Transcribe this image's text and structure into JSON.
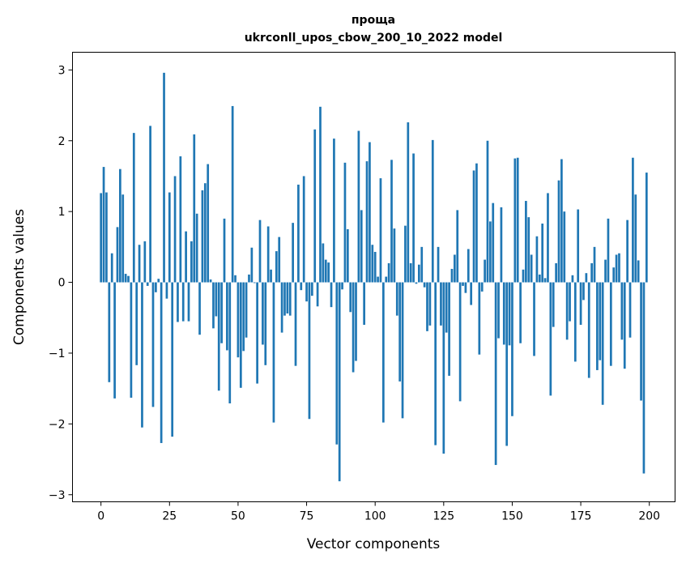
{
  "chart_data": {
    "type": "bar",
    "title": [
      "проща",
      "ukrconll_upos_cbow_200_10_2022 model"
    ],
    "xlabel": "Vector components",
    "ylabel": "Components values",
    "xlim": [
      -10.39,
      209.39
    ],
    "ylim": [
      -3.1,
      3.25
    ],
    "xticks": [
      0,
      25,
      50,
      75,
      100,
      125,
      150,
      175,
      200
    ],
    "yticks": [
      -3,
      -2,
      -1,
      0,
      1,
      2,
      3
    ],
    "ytick_labels": [
      "−3",
      "−2",
      "−1",
      "0",
      "1",
      "2",
      "3"
    ],
    "grid": false,
    "bar_color": "#1f77b4",
    "values": [
      1.26,
      1.63,
      1.27,
      -1.41,
      0.41,
      -1.64,
      0.78,
      1.6,
      1.24,
      0.12,
      0.09,
      -1.63,
      2.11,
      -1.17,
      0.53,
      -2.05,
      0.58,
      -0.05,
      2.21,
      -1.76,
      -0.14,
      0.05,
      -2.27,
      2.96,
      -0.23,
      1.27,
      -2.18,
      1.5,
      -0.56,
      1.78,
      -0.55,
      0.72,
      -0.55,
      0.58,
      2.09,
      0.97,
      -0.74,
      1.3,
      1.4,
      1.67,
      0.04,
      -0.65,
      -0.48,
      -1.53,
      -0.86,
      0.9,
      -0.96,
      -1.71,
      2.49,
      0.1,
      -1.06,
      -1.49,
      -0.97,
      -0.78,
      0.11,
      0.49,
      -0.01,
      -1.43,
      0.88,
      -0.88,
      -1.17,
      0.79,
      0.18,
      -1.98,
      0.44,
      0.64,
      -0.71,
      -0.47,
      -0.44,
      -0.47,
      0.84,
      -1.18,
      1.38,
      -0.11,
      1.5,
      -0.27,
      -1.93,
      -0.19,
      2.16,
      -0.34,
      2.48,
      0.55,
      0.32,
      0.28,
      -0.35,
      2.03,
      -2.29,
      -2.81,
      -0.1,
      1.69,
      0.75,
      -0.42,
      -1.27,
      -1.11,
      2.14,
      1.02,
      -0.6,
      1.71,
      1.98,
      0.53,
      0.43,
      0.08,
      1.47,
      -1.98,
      0.08,
      0.27,
      1.73,
      0.76,
      -0.47,
      -1.4,
      -1.92,
      0.8,
      2.26,
      0.27,
      1.82,
      -0.02,
      0.25,
      0.5,
      -0.07,
      -0.69,
      -0.61,
      2.01,
      -2.3,
      0.5,
      -0.61,
      -2.42,
      -0.71,
      -1.32,
      0.19,
      0.39,
      1.02,
      -1.68,
      -0.05,
      -0.15,
      0.47,
      -0.32,
      1.58,
      1.68,
      -1.02,
      -0.13,
      0.32,
      2.0,
      0.86,
      1.12,
      -2.58,
      -0.79,
      1.06,
      -0.88,
      -2.31,
      -0.89,
      -1.89,
      1.75,
      1.76,
      -0.86,
      0.18,
      1.15,
      0.92,
      0.39,
      -1.04,
      0.65,
      0.11,
      0.83,
      0.06,
      1.26,
      -1.6,
      -0.63,
      0.27,
      1.44,
      1.74,
      1.0,
      -0.81,
      -0.55,
      0.1,
      -1.12,
      1.03,
      -0.6,
      -0.25,
      0.13,
      -1.35,
      0.27,
      0.5,
      -1.24,
      -1.1,
      -1.73,
      0.32,
      0.9,
      -1.18,
      0.21,
      0.39,
      0.41,
      -0.81,
      -1.22,
      0.88,
      -0.78,
      1.76,
      1.24,
      0.31,
      -1.67,
      -2.7,
      1.55
    ]
  }
}
